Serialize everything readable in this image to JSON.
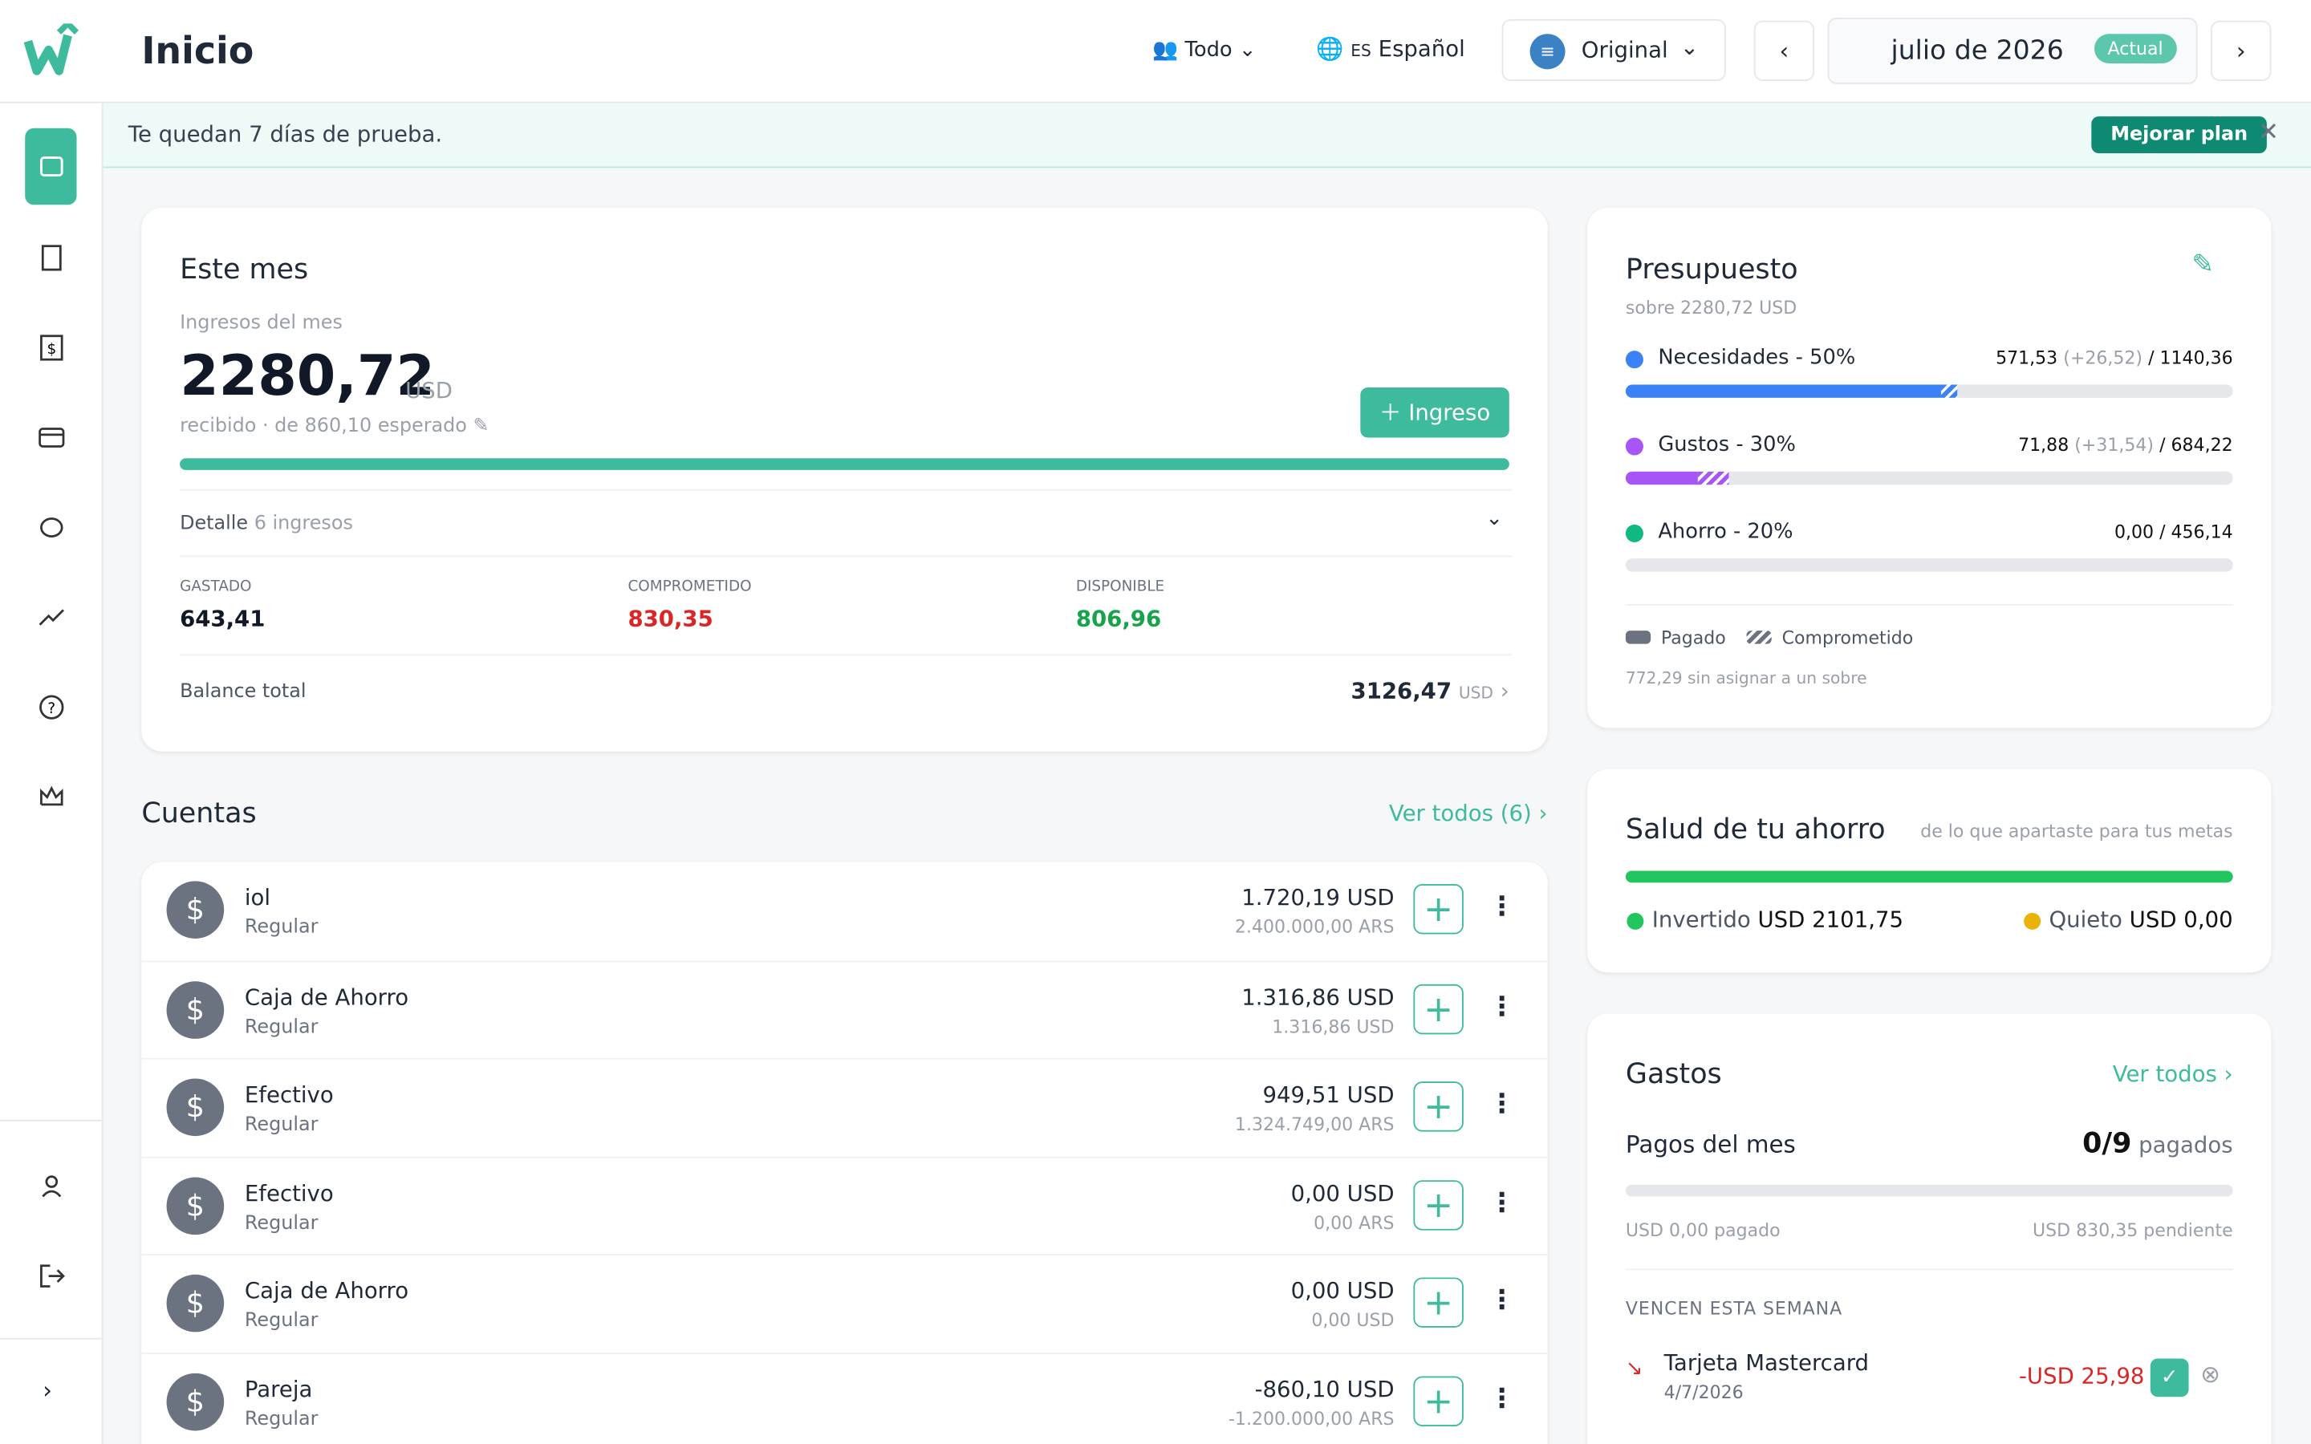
{
  "header": {
    "title": "Inicio",
    "filter": "Todo",
    "language_code": "ES",
    "language": "Español",
    "view_icon": "≡",
    "view": "Original",
    "month": "julio de 2026",
    "month_badge": "Actual"
  },
  "banner": {
    "text": "Te quedan 7 días de prueba.",
    "button": "Mejorar plan"
  },
  "this_month": {
    "title": "Este mes",
    "income_label": "Ingresos del mes",
    "income": "2280,72",
    "currency": "USD",
    "note": "recibido · de 860,10 esperado",
    "add_button": "Ingreso",
    "detail_label": "Detalle",
    "detail_count": "6 ingresos",
    "stats": [
      {
        "label": "GASTADO",
        "value": "643,41"
      },
      {
        "label": "COMPROMETIDO",
        "value": "830,35"
      },
      {
        "label": "DISPONIBLE",
        "value": "806,96"
      }
    ],
    "balance_label": "Balance total",
    "balance": "3126,47",
    "balance_currency": "USD"
  },
  "accounts": {
    "title": "Cuentas",
    "see_all": "Ver todos (6) ›",
    "items": [
      {
        "name": "iol",
        "type": "Regular",
        "amount": "1.720,19 USD",
        "secondary": "2.400.000,00 ARS"
      },
      {
        "name": "Caja de Ahorro",
        "type": "Regular",
        "amount": "1.316,86 USD",
        "secondary": "1.316,86 USD"
      },
      {
        "name": "Efectivo",
        "type": "Regular",
        "amount": "949,51 USD",
        "secondary": "1.324.749,00 ARS"
      },
      {
        "name": "Efectivo",
        "type": "Regular",
        "amount": "0,00 USD",
        "secondary": "0,00 ARS"
      },
      {
        "name": "Caja de Ahorro",
        "type": "Regular",
        "amount": "0,00 USD",
        "secondary": "0,00 USD"
      },
      {
        "name": "Pareja",
        "type": "Regular",
        "amount": "-860,10 USD",
        "secondary": "-1.200.000,00 ARS"
      }
    ]
  },
  "budget": {
    "title": "Presupuesto",
    "subtitle": "sobre 2280,72 USD",
    "envelopes": [
      {
        "name": "Necesidades - 50%",
        "spent": "571,53",
        "committed": "(+26,52)",
        "total": "/ 1140,36",
        "color": "#3b82f6"
      },
      {
        "name": "Gustos - 30%",
        "spent": "71,88",
        "committed": "(+31,54)",
        "total": "/ 684,22",
        "color": "#a855f7"
      },
      {
        "name": "Ahorro - 20%",
        "spent": "0,00",
        "committed": null,
        "total": "/ 456,14",
        "color": "#10b981"
      }
    ],
    "legend_paid": "Pagado",
    "legend_committed": "Comprometido",
    "unassigned": "772,29 sin asignar a un sobre"
  },
  "savings": {
    "title": "Salud de tu ahorro",
    "subtitle": "de lo que apartaste para tus metas",
    "invested_label": "Invertido",
    "invested": "USD 2101,75",
    "idle_label": "Quieto",
    "idle": "USD 0,00"
  },
  "expenses": {
    "title": "Gastos",
    "see_all": "Ver todos ›",
    "payments_label": "Pagos del mes",
    "paid_count": "0/9",
    "paid_suffix": "pagados",
    "paid_amount": "USD 0,00 pagado",
    "pending": "USD 830,35 pendiente",
    "due_label": "VENCEN ESTA SEMANA",
    "due": [
      {
        "name": "Tarjeta Mastercard",
        "date": "4/7/2026",
        "amount": "-USD 25,98"
      }
    ]
  }
}
